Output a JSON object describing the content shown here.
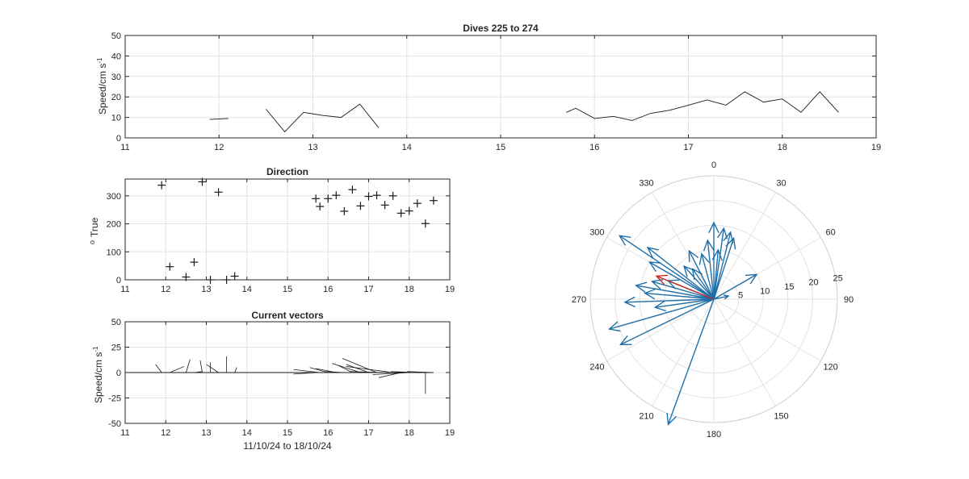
{
  "figure": {
    "speed_title": "Dives 225 to 274",
    "direction_title": "Direction",
    "vectors_title": "Current vectors",
    "speed_ylabel": "Speed/cm s",
    "vectors_ylabel": "Speed/cm s",
    "unit_superscript": "-1",
    "direction_ylabel": "True",
    "degree_prefix": "o",
    "vectors_xlabel": "11/10/24 to 18/10/24"
  },
  "chart_data": [
    {
      "type": "line",
      "title": "Dives 225 to 274",
      "ylabel": "Speed/cm s-1",
      "xlim": [
        11,
        19
      ],
      "ylim": [
        0,
        50
      ],
      "xticks": [
        "11",
        "12",
        "13",
        "14",
        "15",
        "16",
        "17",
        "18",
        "19"
      ],
      "yticks": [
        "0",
        "10",
        "20",
        "30",
        "40",
        "50"
      ],
      "grid": true,
      "segments": [
        [
          [
            11.9,
            9
          ],
          [
            12.1,
            9.5
          ]
        ],
        [
          [
            12.5,
            14
          ],
          [
            12.7,
            3
          ],
          [
            12.9,
            12.5
          ],
          [
            13.1,
            11
          ],
          [
            13.3,
            10
          ],
          [
            13.5,
            16.5
          ],
          [
            13.7,
            5
          ]
        ],
        [
          [
            15.7,
            12.5
          ],
          [
            15.8,
            14.5
          ],
          [
            16.0,
            9.5
          ],
          [
            16.2,
            10.5
          ],
          [
            16.4,
            8.5
          ],
          [
            16.6,
            12
          ],
          [
            16.8,
            13.5
          ],
          [
            17.0,
            16
          ],
          [
            17.2,
            18.5
          ],
          [
            17.4,
            16
          ],
          [
            17.6,
            22.5
          ],
          [
            17.8,
            17.5
          ],
          [
            18.0,
            19
          ],
          [
            18.2,
            12.5
          ],
          [
            18.4,
            22.5
          ],
          [
            18.6,
            12.5
          ]
        ]
      ]
    },
    {
      "type": "scatter",
      "title": "Direction",
      "ylabel": "o True",
      "xlim": [
        11,
        19
      ],
      "ylim": [
        0,
        360
      ],
      "xticks": [
        "11",
        "12",
        "13",
        "14",
        "15",
        "16",
        "17",
        "18",
        "19"
      ],
      "yticks": [
        "0",
        "100",
        "200",
        "300"
      ],
      "grid": true,
      "marker": "+",
      "x": [
        11.9,
        12.1,
        12.5,
        12.7,
        12.9,
        13.1,
        13.3,
        13.5,
        13.7,
        15.7,
        15.8,
        16.0,
        16.2,
        16.4,
        16.6,
        16.8,
        17.0,
        17.2,
        17.4,
        17.6,
        17.8,
        18.0,
        18.2,
        18.4,
        18.6
      ],
      "y": [
        338,
        47,
        10,
        63,
        350,
        0,
        313,
        0,
        13,
        290,
        262,
        290,
        302,
        245,
        322,
        264,
        298,
        302,
        267,
        300,
        238,
        246,
        273,
        201,
        283
      ]
    },
    {
      "type": "line",
      "subtype": "feather",
      "title": "Current vectors",
      "ylabel": "Speed/cm s-1",
      "xlabel": "11/10/24 to 18/10/24",
      "xlim": [
        11,
        19
      ],
      "ylim": [
        -50,
        50
      ],
      "xticks": [
        "11",
        "12",
        "13",
        "14",
        "15",
        "16",
        "17",
        "18",
        "19"
      ],
      "yticks": [
        "-50",
        "-25",
        "0",
        "25",
        "50"
      ],
      "grid": true,
      "baseline_x": [
        11,
        18.6
      ],
      "vectors": [
        {
          "x0": 11.9,
          "dx": -0.15,
          "dy": 8
        },
        {
          "x0": 12.1,
          "dx": 0.35,
          "dy": 6
        },
        {
          "x0": 12.5,
          "dx": 0.1,
          "dy": 13
        },
        {
          "x0": 12.7,
          "dx": 0.2,
          "dy": 1
        },
        {
          "x0": 12.9,
          "dx": -0.05,
          "dy": 12
        },
        {
          "x0": 13.1,
          "dx": 0.0,
          "dy": 10
        },
        {
          "x0": 13.3,
          "dx": -0.3,
          "dy": 8
        },
        {
          "x0": 13.5,
          "dx": 0.0,
          "dy": 16
        },
        {
          "x0": 13.7,
          "dx": 0.05,
          "dy": 5
        },
        {
          "x0": 15.7,
          "dx": -0.55,
          "dy": -1.5
        },
        {
          "x0": 15.8,
          "dx": -0.65,
          "dy": 3
        },
        {
          "x0": 16.0,
          "dx": -0.45,
          "dy": 5
        },
        {
          "x0": 16.2,
          "dx": -0.5,
          "dy": 4
        },
        {
          "x0": 16.4,
          "dx": -0.45,
          "dy": 1
        },
        {
          "x0": 16.6,
          "dx": -0.35,
          "dy": 7
        },
        {
          "x0": 16.8,
          "dx": -0.7,
          "dy": 9
        },
        {
          "x0": 17.0,
          "dx": -0.55,
          "dy": 8
        },
        {
          "x0": 17.2,
          "dx": -0.85,
          "dy": 14
        },
        {
          "x0": 17.4,
          "dx": -0.85,
          "dy": 1
        },
        {
          "x0": 17.6,
          "dx": -1.15,
          "dy": 6
        },
        {
          "x0": 17.8,
          "dx": -0.55,
          "dy": -5
        },
        {
          "x0": 18.0,
          "dx": -0.9,
          "dy": -2
        },
        {
          "x0": 18.2,
          "dx": -0.65,
          "dy": 1
        },
        {
          "x0": 18.4,
          "dx": 0.0,
          "dy": -21
        },
        {
          "x0": 18.6,
          "dx": -0.65,
          "dy": 1
        }
      ]
    },
    {
      "type": "scatter",
      "subtype": "polar-compass",
      "rlim": [
        0,
        25
      ],
      "rticks": [
        "5",
        "10",
        "15",
        "20",
        "25"
      ],
      "theta_labels": [
        "0",
        "30",
        "60",
        "90",
        "120",
        "150",
        "180",
        "210",
        "240",
        "270",
        "300",
        "330"
      ],
      "arrows": [
        {
          "dir": 0,
          "speed": 15.5
        },
        {
          "dir": 8,
          "speed": 14.5
        },
        {
          "dir": 14,
          "speed": 14
        },
        {
          "dir": 18,
          "speed": 13
        },
        {
          "dir": 5,
          "speed": 10
        },
        {
          "dir": 354,
          "speed": 12
        },
        {
          "dir": 345,
          "speed": 9.5
        },
        {
          "dir": 333,
          "speed": 11
        },
        {
          "dir": 325,
          "speed": 7.5
        },
        {
          "dir": 318,
          "speed": 9
        },
        {
          "dir": 308,
          "speed": 17
        },
        {
          "dir": 304,
          "speed": 23
        },
        {
          "dir": 300,
          "speed": 15
        },
        {
          "dir": 292,
          "speed": 10
        },
        {
          "dir": 286,
          "speed": 13
        },
        {
          "dir": 280,
          "speed": 16
        },
        {
          "dir": 275,
          "speed": 14
        },
        {
          "dir": 268,
          "speed": 18
        },
        {
          "dir": 262,
          "speed": 12
        },
        {
          "dir": 254,
          "speed": 22
        },
        {
          "dir": 244,
          "speed": 21
        },
        {
          "dir": 60,
          "speed": 10
        },
        {
          "dir": 78,
          "speed": 3
        },
        {
          "dir": 200,
          "speed": 27
        }
      ],
      "highlight_arrows": [
        {
          "dir": 292,
          "speed": 12.5
        }
      ]
    }
  ],
  "colors": {
    "axis": "#262626",
    "grid": "#e3e3e3",
    "polar_arrow": "#1f6fa8",
    "polar_highlight": "#c8261d",
    "line": "#1a1a1a"
  }
}
